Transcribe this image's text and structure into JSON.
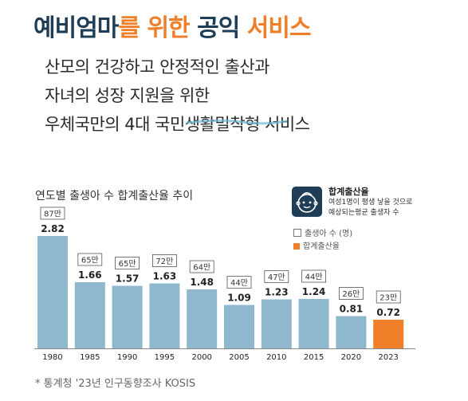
{
  "header": {
    "title_part1": "예비엄마",
    "title_part2": "를 위한",
    "title_part3": " 공익 ",
    "title_part4": "서비스",
    "subtitle_line1": "산모의 건강하고 안정적인 출산과",
    "subtitle_line2": "자녀의 성장 지원을 위한",
    "subtitle_line3": "우체국만의 4대 국민생활밀착형 서비스"
  },
  "legend": {
    "title": "합계출산율",
    "desc_line1": "여성1명이 평생 낳을 것으로",
    "desc_line2": "예상되는평균 출생자 수",
    "births_label": "출생아 수 (명)",
    "rate_label": "합계출산율"
  },
  "source": "* 통계청 '23년 인구동향조사 KOSIS",
  "colors": {
    "bar": "#8fb8ce",
    "highlight": "#f07f2a",
    "title": "#1f3d57"
  },
  "chart_data": {
    "type": "bar",
    "title": "연도별 출생아 수 합계출산율 추이",
    "categories": [
      "1980",
      "1985",
      "1990",
      "1995",
      "2000",
      "2005",
      "2010",
      "2015",
      "2020",
      "2023"
    ],
    "values": [
      2.82,
      1.66,
      1.57,
      1.63,
      1.48,
      1.09,
      1.23,
      1.24,
      0.81,
      0.72
    ],
    "value_labels": [
      "2.82",
      "1.66",
      "1.57",
      "1.63",
      "1.48",
      "1.09",
      "1.23",
      "1.24",
      "0.81",
      "0.72"
    ],
    "births_labels": [
      "87만",
      "65만",
      "65만",
      "72만",
      "64만",
      "44만",
      "47만",
      "44만",
      "26만",
      "23만"
    ],
    "highlight_index": 9,
    "ylim": [
      0,
      3.0
    ],
    "grid": false,
    "legend_position": "top-right"
  }
}
